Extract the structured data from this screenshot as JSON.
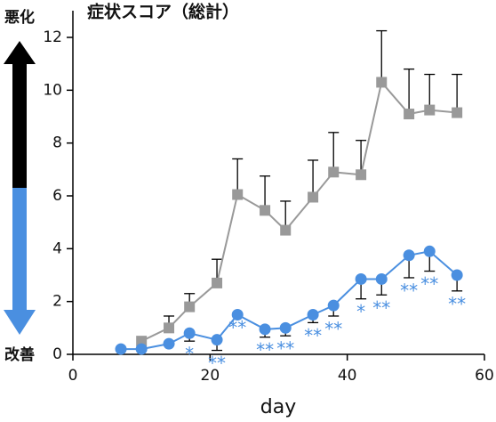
{
  "chart_data": {
    "type": "line",
    "title": "症状スコア（総計）",
    "xlabel": "day",
    "scale_labels": {
      "top": "悪化",
      "bottom": "改善"
    },
    "x": [
      7,
      10,
      14,
      17,
      21,
      24,
      28,
      31,
      35,
      38,
      42,
      45,
      49,
      52,
      56
    ],
    "series": [
      {
        "color": "#999999",
        "marker": "square",
        "error_direction": "up",
        "values": [
          null,
          0.5,
          1.0,
          1.8,
          2.7,
          6.05,
          5.45,
          4.7,
          5.95,
          6.9,
          6.8,
          10.3,
          9.1,
          9.25,
          9.15
        ],
        "errors": [
          null,
          null,
          0.45,
          0.5,
          0.9,
          1.35,
          1.3,
          1.1,
          1.4,
          1.5,
          1.3,
          1.95,
          1.7,
          1.35,
          1.45
        ]
      },
      {
        "color": "#4a8fe0",
        "marker": "circle",
        "error_direction": "down",
        "values": [
          0.2,
          0.2,
          0.4,
          0.8,
          0.55,
          1.5,
          0.95,
          1.0,
          1.5,
          1.85,
          2.85,
          2.85,
          3.75,
          3.9,
          3.0
        ],
        "errors": [
          null,
          null,
          null,
          0.3,
          0.4,
          null,
          0.3,
          0.3,
          0.3,
          0.4,
          0.75,
          0.6,
          0.85,
          0.75,
          0.6
        ],
        "significance": [
          null,
          null,
          null,
          "*",
          "**",
          "**",
          "**",
          "**",
          "**",
          "**",
          "*",
          "**",
          "**",
          "**",
          "**"
        ]
      }
    ],
    "xlim": [
      0,
      60
    ],
    "xticks": [
      0,
      20,
      40,
      60
    ],
    "ylim": [
      0,
      12
    ],
    "yticks": [
      0,
      2,
      4,
      6,
      8,
      10,
      12
    ]
  }
}
